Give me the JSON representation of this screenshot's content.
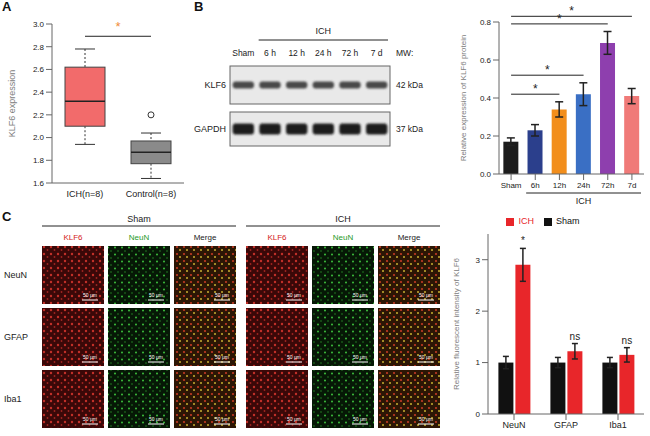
{
  "panel_labels": [
    "A",
    "B",
    "C"
  ],
  "chart_data": [
    {
      "type": "box",
      "y_label": "KLF6 expression",
      "categories": [
        "ICH(n=8)",
        "Control(n=8)"
      ],
      "boxes": [
        {
          "min": 1.94,
          "q1": 2.1,
          "median": 2.32,
          "q3": 2.62,
          "max": 2.78,
          "outliers": []
        },
        {
          "min": 1.64,
          "q1": 1.77,
          "median": 1.87,
          "q3": 1.97,
          "max": 2.04,
          "outliers": [
            2.2
          ]
        }
      ],
      "colors": [
        "#f26b6b",
        "#8a8a8a"
      ],
      "ylim": [
        1.6,
        3.0
      ],
      "yticks": [
        1.6,
        1.8,
        {
          "value": 2,
          "label": "2.0"
        },
        2.2,
        2.4,
        2.6,
        2.8,
        {
          "value": 3,
          "label": "3.0"
        }
      ],
      "annotations": [
        {
          "text": "*",
          "from": "ICH(n=8)",
          "to": "Control(n=8)",
          "color": "#f08c3c"
        }
      ]
    },
    {
      "type": "bar",
      "y_label": "Relative expression of KLF6 protein",
      "categories": [
        "Sham",
        "6h",
        "12h",
        "24h",
        "72h",
        "7d"
      ],
      "values": [
        0.17,
        0.23,
        0.34,
        0.42,
        0.69,
        0.41
      ],
      "errors": [
        0.02,
        0.03,
        0.04,
        0.06,
        0.06,
        0.04
      ],
      "colors": [
        "#1c1c1c",
        "#2b3f8c",
        "#f28e1c",
        "#3a6fc4",
        "#8e3fae",
        "#f07a78"
      ],
      "ylim": [
        0,
        0.8
      ],
      "yticks": [
        {
          "value": 0,
          "label": "0.0"
        },
        0.2,
        0.4,
        0.6,
        0.8
      ],
      "annotations": [
        {
          "text": "*",
          "from": "Sham",
          "to": "12h"
        },
        {
          "text": "*",
          "from": "Sham",
          "to": "24h"
        },
        {
          "text": "*",
          "from": "Sham",
          "to": "72h"
        },
        {
          "text": "*",
          "from": "Sham",
          "to": "7d"
        },
        {
          "text": "ICH",
          "from": "6h",
          "to": "7d",
          "position": "below"
        }
      ]
    },
    {
      "type": "bar",
      "y_label": "Relative fluorescent intensity of KLF6",
      "categories": [
        "NeuN",
        "GFAP",
        "Iba1"
      ],
      "series": [
        {
          "name": "Sham",
          "color": "#111111",
          "values": [
            1,
            1,
            1
          ],
          "errors": [
            0.12,
            0.1,
            0.1
          ]
        },
        {
          "name": "ICH",
          "color": "#e8262a",
          "values": [
            2.9,
            1.22,
            1.15
          ],
          "errors": [
            0.32,
            0.15,
            0.14
          ]
        }
      ],
      "ylim": [
        0,
        3.5
      ],
      "yticks": [
        0,
        1,
        2,
        3
      ],
      "legend": "top",
      "annotations": [
        {
          "text": "*",
          "category": "NeuN"
        },
        {
          "text": "ns",
          "category": "GFAP"
        },
        {
          "text": "ns",
          "category": "Iba1"
        }
      ]
    }
  ],
  "blot": {
    "group": "ICH",
    "lanes": [
      "Sham",
      "6 h",
      "12 h",
      "24 h",
      "72 h",
      "7 d"
    ],
    "mw_header": "MW:",
    "rows": [
      {
        "name": "KLF6",
        "mw": "42 kDa"
      },
      {
        "name": "GAPDH",
        "mw": "37 kDa"
      }
    ]
  },
  "images": {
    "groups": [
      "Sham",
      "ICH"
    ],
    "channels": [
      "KLF6",
      "NeuN",
      "Merge"
    ],
    "rows": [
      "NeuN",
      "GFAP",
      "Iba1"
    ],
    "scale_bar": "50 μm"
  }
}
